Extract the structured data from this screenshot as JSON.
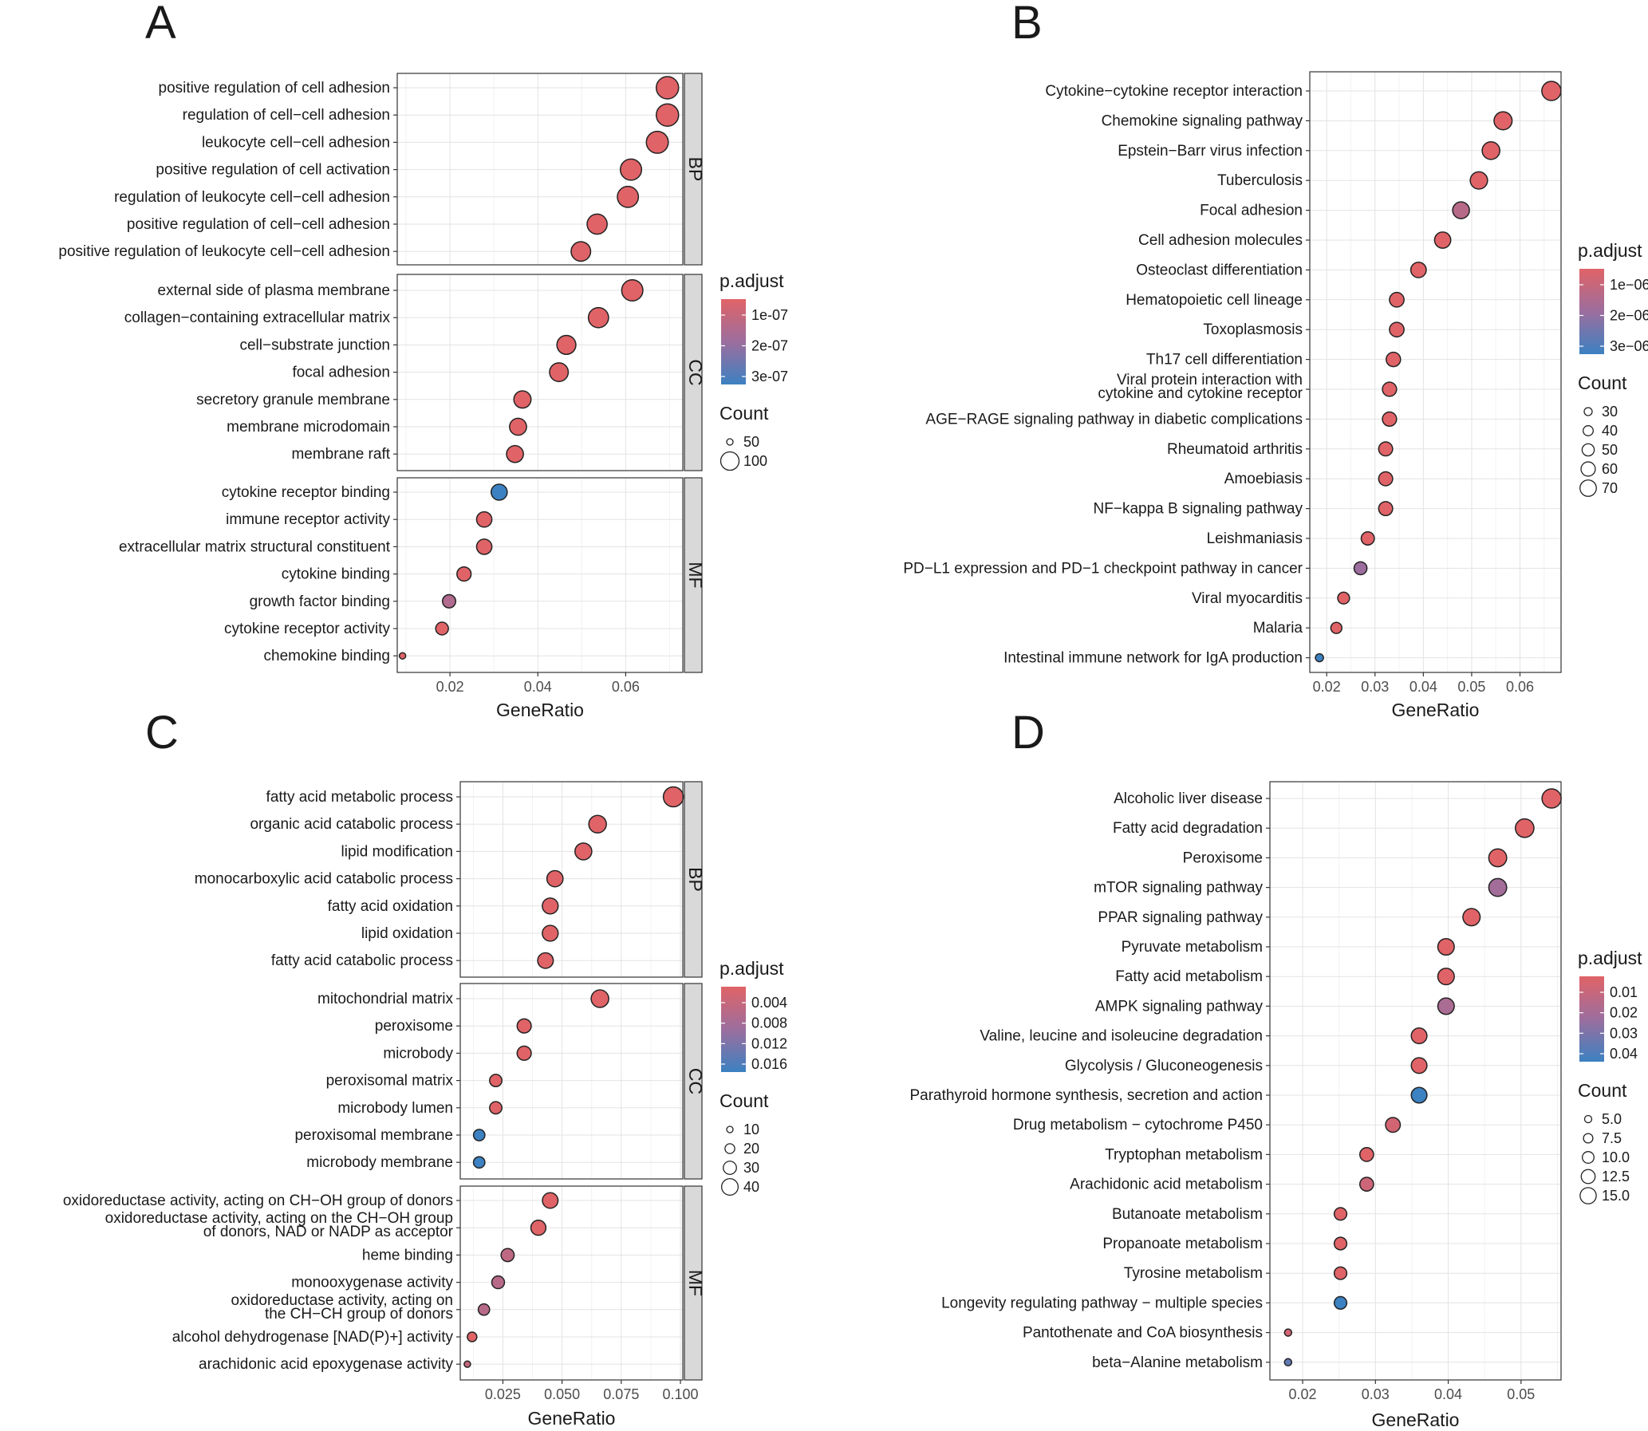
{
  "colors": {
    "low": "#E06367",
    "mid": "#9C6E9E",
    "high": "#3C81C1"
  },
  "chart_data": [
    {
      "type": "scatter",
      "panel": "A",
      "xlabel": "GeneRatio",
      "xticks": [
        0.02,
        0.04,
        0.06
      ],
      "xtick_labels": [
        "0.02",
        "0.04",
        "0.06"
      ],
      "xlim": [
        0.008,
        0.073
      ],
      "legend": {
        "color_title": "p.adjust",
        "color_ticks": [
          "1e-07",
          "2e-07",
          "3e-07"
        ],
        "size_title": "Count",
        "size_ticks": [
          "50",
          "100"
        ]
      },
      "facets": [
        {
          "label": "BP",
          "points": [
            {
              "term": "positive regulation of cell adhesion",
              "x": 0.0695,
              "count": 125,
              "c": 0.0
            },
            {
              "term": "regulation of cell−cell adhesion",
              "x": 0.0695,
              "count": 125,
              "c": 0.0
            },
            {
              "term": "leukocyte cell−cell adhesion",
              "x": 0.0672,
              "count": 120,
              "c": 0.0
            },
            {
              "term": "positive regulation of cell activation",
              "x": 0.0612,
              "count": 110,
              "c": 0.0
            },
            {
              "term": "regulation of leukocyte cell−cell adhesion",
              "x": 0.0605,
              "count": 108,
              "c": 0.0
            },
            {
              "term": "positive regulation of cell−cell adhesion",
              "x": 0.0535,
              "count": 96,
              "c": 0.0
            },
            {
              "term": "positive regulation of leukocyte cell−cell adhesion",
              "x": 0.0498,
              "count": 90,
              "c": 0.02
            }
          ]
        },
        {
          "label": "CC",
          "points": [
            {
              "term": "external side of plasma membrane",
              "x": 0.0615,
              "count": 110,
              "c": 0.0
            },
            {
              "term": "collagen−containing extracellular matrix",
              "x": 0.0538,
              "count": 97,
              "c": 0.0
            },
            {
              "term": "cell−substrate junction",
              "x": 0.0465,
              "count": 84,
              "c": 0.0
            },
            {
              "term": "focal adhesion",
              "x": 0.0448,
              "count": 81,
              "c": 0.0
            },
            {
              "term": "secretory granule membrane",
              "x": 0.0365,
              "count": 66,
              "c": 0.0
            },
            {
              "term": "membrane microdomain",
              "x": 0.0355,
              "count": 64,
              "c": 0.0
            },
            {
              "term": "membrane raft",
              "x": 0.0348,
              "count": 63,
              "c": 0.0
            }
          ]
        },
        {
          "label": "MF",
          "points": [
            {
              "term": "cytokine receptor binding",
              "x": 0.0312,
              "count": 56,
              "c": 1.0
            },
            {
              "term": "immune receptor activity",
              "x": 0.0278,
              "count": 50,
              "c": 0.0
            },
            {
              "term": "extracellular matrix structural constituent",
              "x": 0.0278,
              "count": 50,
              "c": 0.0
            },
            {
              "term": "cytokine binding",
              "x": 0.0232,
              "count": 42,
              "c": 0.0
            },
            {
              "term": "growth factor binding",
              "x": 0.0198,
              "count": 36,
              "c": 0.35
            },
            {
              "term": "cytokine receptor activity",
              "x": 0.0182,
              "count": 33,
              "c": 0.0
            },
            {
              "term": "chemokine binding",
              "x": 0.0092,
              "count": 16,
              "c": 0.0
            }
          ]
        }
      ]
    },
    {
      "type": "scatter",
      "panel": "B",
      "xlabel": "GeneRatio",
      "xticks": [
        0.02,
        0.03,
        0.04,
        0.05,
        0.06
      ],
      "xtick_labels": [
        "0.02",
        "0.03",
        "0.04",
        "0.05",
        "0.06"
      ],
      "xlim": [
        0.0165,
        0.0685
      ],
      "legend": {
        "color_title": "p.adjust",
        "color_ticks": [
          "1e−06",
          "2e−06",
          "3e−06"
        ],
        "size_title": "Count",
        "size_ticks": [
          "30",
          "40",
          "50",
          "60",
          "70"
        ]
      },
      "facets": [
        {
          "label": "",
          "points": [
            {
              "term": "Cytokine−cytokine receptor interaction",
              "x": 0.0665,
              "count": 72,
              "c": 0.0
            },
            {
              "term": "Chemokine signaling pathway",
              "x": 0.0565,
              "count": 62,
              "c": 0.0
            },
            {
              "term": "Epstein−Barr virus infection",
              "x": 0.054,
              "count": 59,
              "c": 0.0
            },
            {
              "term": "Tuberculosis",
              "x": 0.0515,
              "count": 56,
              "c": 0.0
            },
            {
              "term": "Focal adhesion",
              "x": 0.0478,
              "count": 52,
              "c": 0.3
            },
            {
              "term": "Cell adhesion molecules",
              "x": 0.044,
              "count": 48,
              "c": 0.0
            },
            {
              "term": "Osteoclast differentiation",
              "x": 0.039,
              "count": 43,
              "c": 0.0
            },
            {
              "term": "Hematopoietic cell lineage",
              "x": 0.0345,
              "count": 38,
              "c": 0.0
            },
            {
              "term": "Toxoplasmosis",
              "x": 0.0345,
              "count": 38,
              "c": 0.0
            },
            {
              "term": "Th17 cell differentiation",
              "x": 0.0338,
              "count": 37,
              "c": 0.0
            },
            {
              "term": "Viral protein interaction with cytokine and cytokine receptor",
              "x": 0.033,
              "count": 36,
              "c": 0.0
            },
            {
              "term": "AGE−RAGE signaling pathway in diabetic complications",
              "x": 0.033,
              "count": 36,
              "c": 0.0
            },
            {
              "term": "Rheumatoid arthritis",
              "x": 0.0322,
              "count": 35,
              "c": 0.0
            },
            {
              "term": "Amoebiasis",
              "x": 0.0322,
              "count": 35,
              "c": 0.0
            },
            {
              "term": "NF−kappa B signaling pathway",
              "x": 0.0322,
              "count": 35,
              "c": 0.0
            },
            {
              "term": "Leishmaniasis",
              "x": 0.0285,
              "count": 31,
              "c": 0.0
            },
            {
              "term": "PD−L1 expression and PD−1 checkpoint pathway in cancer",
              "x": 0.027,
              "count": 30,
              "c": 0.5
            },
            {
              "term": "Viral myocarditis",
              "x": 0.0235,
              "count": 26,
              "c": 0.0
            },
            {
              "term": "Malaria",
              "x": 0.022,
              "count": 24,
              "c": 0.0
            },
            {
              "term": "Intestinal immune network for IgA production",
              "x": 0.0185,
              "count": 20,
              "c": 1.0
            }
          ]
        }
      ]
    },
    {
      "type": "scatter",
      "panel": "C",
      "xlabel": "GeneRatio",
      "xticks": [
        0.025,
        0.05,
        0.075,
        0.1
      ],
      "xtick_labels": [
        "0.025",
        "0.050",
        "0.075",
        "0.100"
      ],
      "xlim": [
        0.007,
        0.101
      ],
      "legend": {
        "color_title": "p.adjust",
        "color_ticks": [
          "0.004",
          "0.008",
          "0.012",
          "0.016"
        ],
        "size_title": "Count",
        "size_ticks": [
          "10",
          "20",
          "30",
          "40"
        ]
      },
      "facets": [
        {
          "label": "BP",
          "points": [
            {
              "term": "fatty acid metabolic process",
              "x": 0.097,
              "count": 42,
              "c": 0.0
            },
            {
              "term": "organic acid catabolic process",
              "x": 0.065,
              "count": 30,
              "c": 0.0
            },
            {
              "term": "lipid modification",
              "x": 0.059,
              "count": 27,
              "c": 0.0
            },
            {
              "term": "monocarboxylic acid catabolic process",
              "x": 0.047,
              "count": 24,
              "c": 0.0
            },
            {
              "term": "fatty acid oxidation",
              "x": 0.045,
              "count": 23,
              "c": 0.0
            },
            {
              "term": "lipid oxidation",
              "x": 0.045,
              "count": 23,
              "c": 0.0
            },
            {
              "term": "fatty acid catabolic process",
              "x": 0.043,
              "count": 22,
              "c": 0.0
            }
          ]
        },
        {
          "label": "CC",
          "points": [
            {
              "term": "mitochondrial matrix",
              "x": 0.066,
              "count": 30,
              "c": 0.0
            },
            {
              "term": "peroxisome",
              "x": 0.034,
              "count": 17,
              "c": 0.0
            },
            {
              "term": "microbody",
              "x": 0.034,
              "count": 17,
              "c": 0.0
            },
            {
              "term": "peroxisomal matrix",
              "x": 0.022,
              "count": 12,
              "c": 0.0
            },
            {
              "term": "microbody lumen",
              "x": 0.022,
              "count": 12,
              "c": 0.0
            },
            {
              "term": "peroxisomal membrane",
              "x": 0.015,
              "count": 10,
              "c": 1.0
            },
            {
              "term": "microbody membrane",
              "x": 0.015,
              "count": 10,
              "c": 1.0
            }
          ]
        },
        {
          "label": "MF",
          "points": [
            {
              "term": "oxidoreductase activity, acting on CH−OH group of donors",
              "x": 0.045,
              "count": 22,
              "c": 0.0
            },
            {
              "term": "oxidoreductase activity, acting on the CH−OH group of donors, NAD or NADP as acceptor",
              "x": 0.04,
              "count": 20,
              "c": 0.0
            },
            {
              "term": "heme binding",
              "x": 0.027,
              "count": 14,
              "c": 0.25
            },
            {
              "term": "monooxygenase activity",
              "x": 0.023,
              "count": 13,
              "c": 0.3
            },
            {
              "term": "oxidoreductase activity, acting on the CH−CH group of donors",
              "x": 0.017,
              "count": 10,
              "c": 0.3
            },
            {
              "term": "alcohol dehydrogenase [NAD(P)+] activity",
              "x": 0.012,
              "count": 7,
              "c": 0.0
            },
            {
              "term": "arachidonic acid epoxygenase activity",
              "x": 0.01,
              "count": 5,
              "c": 0.2
            }
          ]
        }
      ]
    },
    {
      "type": "scatter",
      "panel": "D",
      "xlabel": "GeneRatio",
      "xticks": [
        0.02,
        0.03,
        0.04,
        0.05
      ],
      "xtick_labels": [
        "0.02",
        "0.03",
        "0.04",
        "0.05"
      ],
      "xlim": [
        0.0155,
        0.0555
      ],
      "legend": {
        "color_title": "p.adjust",
        "color_ticks": [
          "0.01",
          "0.02",
          "0.03",
          "0.04"
        ],
        "size_title": "Count",
        "size_ticks": [
          "5.0",
          "7.5",
          "10.0",
          "12.5",
          "15.0"
        ]
      },
      "facets": [
        {
          "label": "",
          "points": [
            {
              "term": "Alcoholic liver disease",
              "x": 0.0542,
              "count": 15,
              "c": 0.0
            },
            {
              "term": "Fatty acid degradation",
              "x": 0.0505,
              "count": 14,
              "c": 0.0
            },
            {
              "term": "Peroxisome",
              "x": 0.0468,
              "count": 13,
              "c": 0.0
            },
            {
              "term": "mTOR signaling pathway",
              "x": 0.0468,
              "count": 13,
              "c": 0.45
            },
            {
              "term": "PPAR signaling pathway",
              "x": 0.0432,
              "count": 12,
              "c": 0.0
            },
            {
              "term": "Pyruvate metabolism",
              "x": 0.0397,
              "count": 11,
              "c": 0.0
            },
            {
              "term": "Fatty acid metabolism",
              "x": 0.0397,
              "count": 11,
              "c": 0.0
            },
            {
              "term": "AMPK signaling pathway",
              "x": 0.0397,
              "count": 11,
              "c": 0.4
            },
            {
              "term": "Valine, leucine and isoleucine degradation",
              "x": 0.036,
              "count": 10,
              "c": 0.0
            },
            {
              "term": "Glycolysis / Gluconeogenesis",
              "x": 0.036,
              "count": 10,
              "c": 0.0
            },
            {
              "term": "Parathyroid hormone synthesis, secretion and action",
              "x": 0.036,
              "count": 10,
              "c": 1.0
            },
            {
              "term": "Drug metabolism − cytochrome P450",
              "x": 0.0324,
              "count": 9,
              "c": 0.1
            },
            {
              "term": "Tryptophan metabolism",
              "x": 0.0288,
              "count": 8,
              "c": 0.0
            },
            {
              "term": "Arachidonic acid metabolism",
              "x": 0.0288,
              "count": 8,
              "c": 0.15
            },
            {
              "term": "Butanoate metabolism",
              "x": 0.0252,
              "count": 7,
              "c": 0.0
            },
            {
              "term": "Propanoate metabolism",
              "x": 0.0252,
              "count": 7,
              "c": 0.0
            },
            {
              "term": "Tyrosine metabolism",
              "x": 0.0252,
              "count": 7,
              "c": 0.0
            },
            {
              "term": "Longevity regulating pathway − multiple species",
              "x": 0.0252,
              "count": 7,
              "c": 1.0
            },
            {
              "term": "Pantothenate and CoA biosynthesis",
              "x": 0.018,
              "count": 5,
              "c": 0.1
            },
            {
              "term": "beta−Alanine metabolism",
              "x": 0.018,
              "count": 5,
              "c": 0.8
            }
          ]
        }
      ]
    }
  ]
}
